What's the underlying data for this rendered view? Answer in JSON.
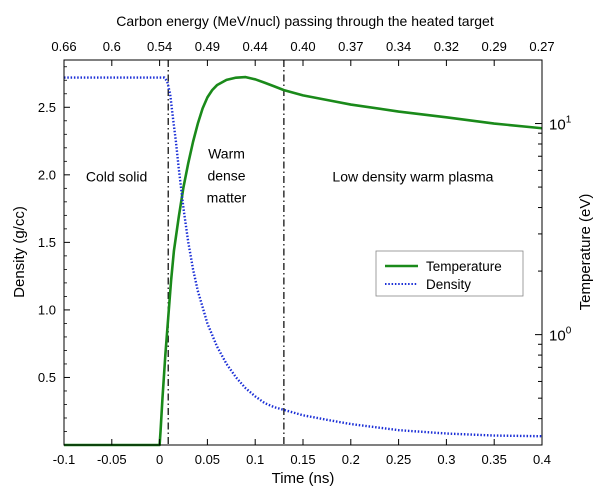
{
  "chart_data": {
    "type": "line",
    "top_title": "Carbon energy (MeV/nucl) passing through the heated target",
    "xlabel": "Time (ns)",
    "ylabel_left": "Density (g/cc)",
    "ylabel_right": "Temperature (eV)",
    "xlim": [
      -0.1,
      0.4
    ],
    "ylim_left": [
      0.0,
      2.85
    ],
    "ylim_right_log": [
      0.3,
      20
    ],
    "x_ticks": [
      "-0.1",
      "-0.05",
      "0",
      "0.05",
      "0.1",
      "0.15",
      "0.2",
      "0.25",
      "0.3",
      "0.35",
      "0.4"
    ],
    "x_tick_values": [
      -0.1,
      -0.05,
      0,
      0.05,
      0.1,
      0.15,
      0.2,
      0.25,
      0.3,
      0.35,
      0.4
    ],
    "y_left_ticks": [
      "0.5",
      "1.0",
      "1.5",
      "2.0",
      "2.5"
    ],
    "y_left_tick_values": [
      0.5,
      1.0,
      1.5,
      2.0,
      2.5
    ],
    "y_right_ticks": [
      {
        "base": "10",
        "exp": "0",
        "value": 1
      },
      {
        "base": "10",
        "exp": "1",
        "value": 10
      }
    ],
    "top_ticks": [
      "0.66",
      "0.6",
      "0.54",
      "0.49",
      "0.44",
      "0.40",
      "0.37",
      "0.34",
      "0.32",
      "0.29",
      "0.27"
    ],
    "vlines": [
      0.009,
      0.13
    ],
    "regions": [
      {
        "lines": [
          "Cold solid"
        ],
        "x": -0.045,
        "y": 1.95
      },
      {
        "lines": [
          "Warm",
          "dense",
          "matter"
        ],
        "x": 0.07,
        "y": 2.12
      },
      {
        "lines": [
          "Low density warm plasma"
        ],
        "x": 0.265,
        "y": 1.95
      }
    ],
    "legend": {
      "position": "center-right",
      "entries": [
        "Temperature",
        "Density"
      ]
    },
    "series": [
      {
        "name": "Temperature",
        "axis": "right",
        "color": "#1a8a1a",
        "style": "solid",
        "points": [
          [
            -0.1,
            0.3
          ],
          [
            0.0,
            0.3
          ],
          [
            0.001,
            0.35
          ],
          [
            0.003,
            0.5
          ],
          [
            0.006,
            0.8
          ],
          [
            0.009,
            1.2
          ],
          [
            0.012,
            1.8
          ],
          [
            0.015,
            2.5
          ],
          [
            0.02,
            3.6
          ],
          [
            0.025,
            5.0
          ],
          [
            0.03,
            6.5
          ],
          [
            0.035,
            8.2
          ],
          [
            0.04,
            10.0
          ],
          [
            0.045,
            11.8
          ],
          [
            0.05,
            13.3
          ],
          [
            0.055,
            14.4
          ],
          [
            0.06,
            15.2
          ],
          [
            0.07,
            16.1
          ],
          [
            0.08,
            16.5
          ],
          [
            0.09,
            16.6
          ],
          [
            0.1,
            16.2
          ],
          [
            0.11,
            15.6
          ],
          [
            0.12,
            15.0
          ],
          [
            0.13,
            14.4
          ],
          [
            0.15,
            13.6
          ],
          [
            0.18,
            12.8
          ],
          [
            0.2,
            12.3
          ],
          [
            0.25,
            11.4
          ],
          [
            0.3,
            10.7
          ],
          [
            0.35,
            10.0
          ],
          [
            0.4,
            9.5
          ]
        ]
      },
      {
        "name": "Density",
        "axis": "left",
        "color": "#1a2ed6",
        "style": "dotted",
        "points": [
          [
            -0.1,
            2.72
          ],
          [
            0.005,
            2.72
          ],
          [
            0.008,
            2.69
          ],
          [
            0.011,
            2.6
          ],
          [
            0.014,
            2.42
          ],
          [
            0.017,
            2.25
          ],
          [
            0.02,
            2.05
          ],
          [
            0.025,
            1.75
          ],
          [
            0.03,
            1.5
          ],
          [
            0.035,
            1.3
          ],
          [
            0.04,
            1.14
          ],
          [
            0.05,
            0.9
          ],
          [
            0.06,
            0.73
          ],
          [
            0.07,
            0.6
          ],
          [
            0.08,
            0.5
          ],
          [
            0.09,
            0.42
          ],
          [
            0.1,
            0.36
          ],
          [
            0.11,
            0.31
          ],
          [
            0.12,
            0.28
          ],
          [
            0.13,
            0.26
          ],
          [
            0.15,
            0.22
          ],
          [
            0.18,
            0.18
          ],
          [
            0.2,
            0.155
          ],
          [
            0.25,
            0.11
          ],
          [
            0.3,
            0.085
          ],
          [
            0.35,
            0.07
          ],
          [
            0.4,
            0.065
          ]
        ]
      }
    ]
  }
}
